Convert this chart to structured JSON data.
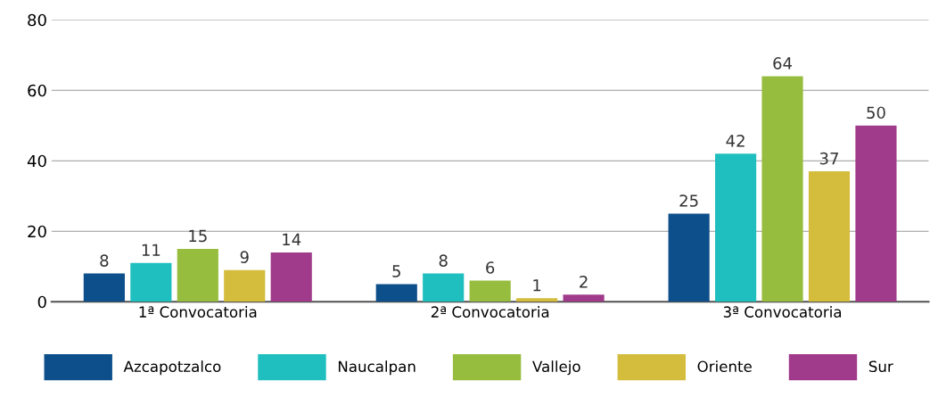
{
  "chart_data": {
    "type": "bar",
    "categories": [
      "1ª Convocatoria",
      "2ª Convocatoria",
      "3ª Convocatoria"
    ],
    "series": [
      {
        "name": "Azcapotzalco",
        "color": "#0d4f8b",
        "values": [
          8,
          5,
          25
        ]
      },
      {
        "name": "Naucalpan",
        "color": "#20bfbf",
        "values": [
          11,
          8,
          42
        ]
      },
      {
        "name": "Vallejo",
        "color": "#97bd3f",
        "values": [
          15,
          6,
          64
        ]
      },
      {
        "name": "Oriente",
        "color": "#d4bc3c",
        "values": [
          9,
          1,
          37
        ]
      },
      {
        "name": "Sur",
        "color": "#a03a8b",
        "values": [
          14,
          2,
          50
        ]
      }
    ],
    "ylim": [
      0,
      80
    ],
    "yticks": [
      0,
      20,
      40,
      60,
      80
    ],
    "grid": "y",
    "legend": "bottom",
    "data_labels": true
  }
}
